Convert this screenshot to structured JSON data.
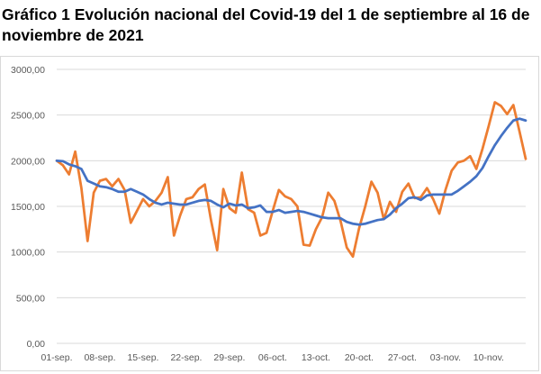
{
  "title": "Gráfico 1 Evolución nacional del Covid-19 del 1 de septiembre al 16 de noviembre de 2021",
  "colors": {
    "series_daily": "#ed7d31",
    "series_average": "#4472c4",
    "grid": "#d9d9d9",
    "text": "#595959"
  },
  "chart_data": {
    "type": "line",
    "title": "Gráfico 1 Evolución nacional del Covid-19 del 1 de septiembre al 16 de noviembre de 2021",
    "xlabel": "",
    "ylabel": "",
    "ylim": [
      0,
      3000
    ],
    "y_ticks": [
      "0,00",
      "500,00",
      "1000,00",
      "1500,00",
      "2000,00",
      "2500,00",
      "3000,00"
    ],
    "x_tick_labels": [
      "01-sep.",
      "08-sep.",
      "15-sep.",
      "22-sep.",
      "29-sep.",
      "06-oct.",
      "13-oct.",
      "20-oct.",
      "27-oct.",
      "03-nov.",
      "10-nov."
    ],
    "x_tick_every": 7,
    "grid": true,
    "legend": "none",
    "series": [
      {
        "color": "#ed7d31",
        "values": [
          2000,
          1950,
          1850,
          2100,
          1700,
          1120,
          1650,
          1780,
          1800,
          1720,
          1800,
          1680,
          1320,
          1450,
          1580,
          1500,
          1560,
          1650,
          1820,
          1180,
          1400,
          1580,
          1600,
          1690,
          1740,
          1350,
          1020,
          1690,
          1480,
          1430,
          1870,
          1470,
          1430,
          1180,
          1210,
          1450,
          1680,
          1610,
          1580,
          1500,
          1080,
          1070,
          1250,
          1380,
          1650,
          1560,
          1340,
          1050,
          950,
          1260,
          1500,
          1770,
          1650,
          1360,
          1550,
          1440,
          1660,
          1750,
          1590,
          1600,
          1700,
          1580,
          1420,
          1680,
          1890,
          1980,
          2000,
          2050,
          1910,
          2130,
          2380,
          2640,
          2600,
          2510,
          2610,
          2320,
          2020
        ]
      },
      {
        "color": "#4472c4",
        "values": [
          2000,
          1995,
          1960,
          1940,
          1910,
          1780,
          1750,
          1720,
          1710,
          1690,
          1660,
          1660,
          1690,
          1660,
          1630,
          1580,
          1540,
          1520,
          1540,
          1530,
          1520,
          1520,
          1540,
          1560,
          1570,
          1560,
          1520,
          1490,
          1530,
          1510,
          1520,
          1480,
          1490,
          1510,
          1440,
          1440,
          1460,
          1430,
          1440,
          1450,
          1440,
          1420,
          1400,
          1380,
          1370,
          1370,
          1370,
          1330,
          1310,
          1300,
          1310,
          1330,
          1350,
          1360,
          1410,
          1480,
          1530,
          1590,
          1600,
          1570,
          1620,
          1630,
          1630,
          1630,
          1630,
          1670,
          1720,
          1770,
          1830,
          1920,
          2050,
          2170,
          2270,
          2360,
          2440,
          2460,
          2440
        ]
      }
    ]
  }
}
